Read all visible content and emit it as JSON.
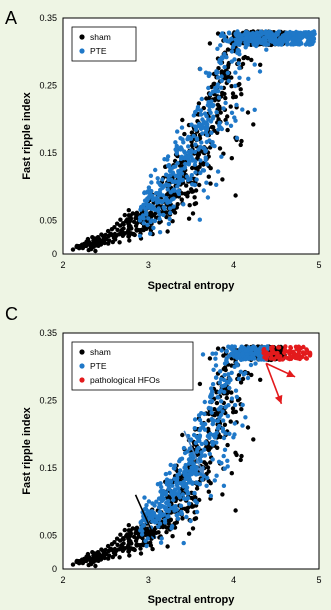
{
  "colors": {
    "background": "#eef5e4",
    "sham": "#000000",
    "pte": "#1f78c8",
    "pathological": "#e31a1c",
    "arrow_black": "#000000",
    "arrow_blue": "#4a86c5",
    "arrow_red": "#e31a1c"
  },
  "chart_data": [
    {
      "panel_label": "A",
      "type": "scatter",
      "xlabel": "Spectral entropy",
      "ylabel": "Fast ripple index",
      "xlim": [
        2,
        5
      ],
      "ylim": [
        0,
        0.35
      ],
      "x_ticks": [
        "2",
        "3",
        "4",
        "5"
      ],
      "y_ticks": [
        "0",
        "0.05",
        "0.15",
        "0.25",
        "0.35"
      ],
      "y_tick_values": [
        0,
        0.05,
        0.15,
        0.25,
        0.35
      ],
      "grid": false,
      "legend_position": "top-left",
      "series": [
        {
          "name": "sham",
          "color_key": "sham",
          "count": 700,
          "x_range": [
            2.1,
            4.6
          ],
          "curve": {
            "base": 0.007,
            "k": 0.0138,
            "rate": 1.55,
            "x0": 2.0
          },
          "spread": 0.45
        },
        {
          "name": "PTE",
          "color_key": "pte",
          "count": 600,
          "x_range": [
            2.9,
            4.95
          ],
          "curve": {
            "base": 0.02,
            "k": 0.0138,
            "rate": 1.55,
            "x0": 2.0
          },
          "spread": 0.4
        }
      ]
    },
    {
      "panel_label": "C",
      "type": "scatter",
      "xlabel": "Spectral entropy",
      "ylabel": "Fast ripple index",
      "xlim": [
        2,
        5
      ],
      "ylim": [
        0,
        0.35
      ],
      "x_ticks": [
        "2",
        "3",
        "4",
        "5"
      ],
      "y_ticks": [
        "0",
        "0.05",
        "0.15",
        "0.25",
        "0.35"
      ],
      "y_tick_values": [
        0,
        0.05,
        0.15,
        0.25,
        0.35
      ],
      "grid": false,
      "legend_position": "top-left",
      "series": [
        {
          "name": "sham",
          "color_key": "sham",
          "count": 700,
          "x_range": [
            2.1,
            4.6
          ],
          "curve": {
            "base": 0.007,
            "k": 0.0138,
            "rate": 1.55,
            "x0": 2.0
          },
          "spread": 0.45
        },
        {
          "name": "PTE",
          "color_key": "pte",
          "count": 520,
          "x_range": [
            2.9,
            4.4
          ],
          "curve": {
            "base": 0.02,
            "k": 0.0138,
            "rate": 1.55,
            "x0": 2.0
          },
          "spread": 0.4
        },
        {
          "name": "pathological HFOs",
          "color_key": "pathological",
          "count": 90,
          "x_range": [
            4.35,
            4.9
          ],
          "curve": {
            "base": 0.02,
            "k": 0.0138,
            "rate": 1.55,
            "x0": 2.0
          },
          "spread": 0.35
        }
      ],
      "arrows": [
        {
          "color_key": "arrow_black",
          "from": [
            2.85,
            0.11
          ],
          "to": [
            3.08,
            0.045
          ]
        },
        {
          "color_key": "arrow_blue",
          "from": [
            3.42,
            0.205
          ],
          "to": [
            3.65,
            0.14
          ]
        },
        {
          "color_key": "arrow_red",
          "from": [
            4.38,
            0.305
          ],
          "to": [
            4.56,
            0.245
          ]
        },
        {
          "color_key": "arrow_red",
          "from": [
            4.38,
            0.305
          ],
          "to": [
            4.72,
            0.285
          ]
        }
      ]
    }
  ]
}
